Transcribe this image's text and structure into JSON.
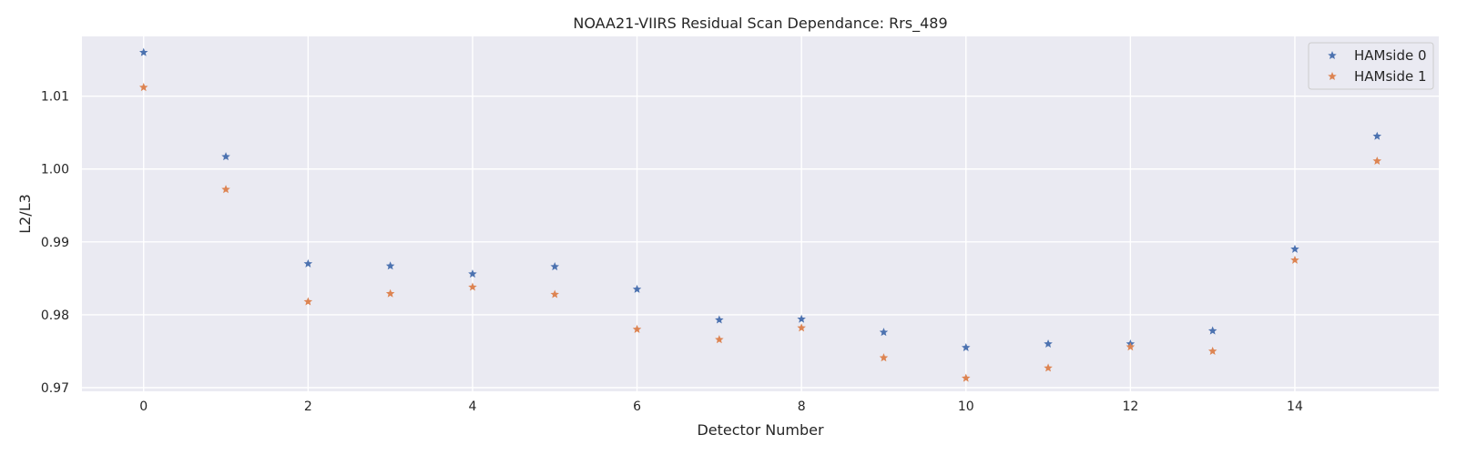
{
  "chart_data": {
    "type": "scatter",
    "title": "NOAA21-VIIRS Residual Scan Dependance: Rrs_489",
    "xlabel": "Detector Number",
    "ylabel": "L2/L3",
    "xlim": [
      -0.75,
      15.75
    ],
    "ylim": [
      0.9695,
      1.0182
    ],
    "x_ticks": [
      "0",
      "2",
      "4",
      "6",
      "8",
      "10",
      "12",
      "14"
    ],
    "y_ticks": [
      "0.97",
      "0.98",
      "0.99",
      "1.00",
      "1.01"
    ],
    "grid": true,
    "legend_position": "top-right",
    "marker": "star",
    "x": [
      0,
      1,
      2,
      3,
      4,
      5,
      6,
      7,
      8,
      9,
      10,
      11,
      12,
      13,
      14,
      15
    ],
    "series": [
      {
        "name": "HAMside 0",
        "color": "#4c72b0",
        "values": [
          1.016,
          1.0017,
          0.987,
          0.9867,
          0.9856,
          0.9866,
          0.9835,
          0.9793,
          0.9794,
          0.9776,
          0.9755,
          0.976,
          0.976,
          0.9778,
          0.989,
          1.0045
        ]
      },
      {
        "name": "HAMside 1",
        "color": "#dd8452",
        "values": [
          1.0112,
          0.9972,
          0.9818,
          0.9829,
          0.9838,
          0.9828,
          0.978,
          0.9766,
          0.9782,
          0.9741,
          0.9713,
          0.9727,
          0.9756,
          0.975,
          0.9875,
          1.0011
        ]
      }
    ],
    "colors": {
      "plot_background": "#eaeaf2",
      "grid": "#ffffff",
      "text": "#262626"
    }
  }
}
